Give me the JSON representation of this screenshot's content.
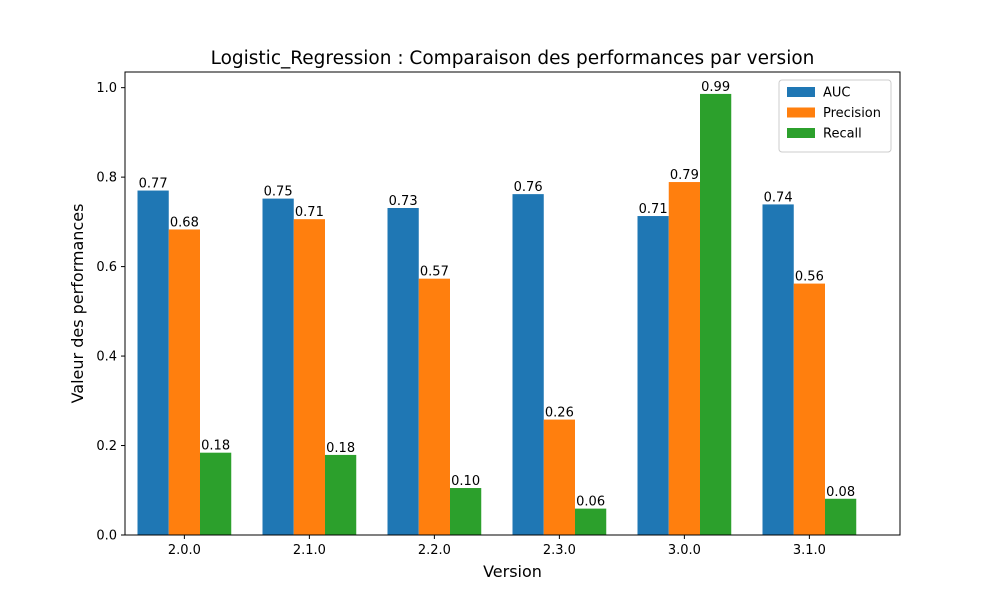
{
  "chart_data": {
    "type": "bar",
    "title": "Logistic_Regression : Comparaison des performances par version",
    "xlabel": "Version",
    "ylabel": "Valeur des performances",
    "categories": [
      "2.0.0",
      "2.1.0",
      "2.2.0",
      "2.3.0",
      "3.0.0",
      "3.1.0"
    ],
    "series": [
      {
        "name": "AUC",
        "color": "#1f77b4",
        "values": [
          0.77,
          0.752,
          0.731,
          0.762,
          0.713,
          0.739
        ],
        "labels": [
          "0.77",
          "0.75",
          "0.73",
          "0.76",
          "0.71",
          "0.74"
        ]
      },
      {
        "name": "Precision",
        "color": "#ff7f0e",
        "values": [
          0.683,
          0.706,
          0.573,
          0.258,
          0.789,
          0.562
        ],
        "labels": [
          "0.68",
          "0.71",
          "0.57",
          "0.26",
          "0.79",
          "0.56"
        ]
      },
      {
        "name": "Recall",
        "color": "#2ca02c",
        "values": [
          0.184,
          0.179,
          0.105,
          0.059,
          0.986,
          0.081
        ],
        "labels": [
          "0.18",
          "0.18",
          "0.10",
          "0.06",
          "0.99",
          "0.08"
        ]
      }
    ],
    "ylim": [
      0,
      1.035
    ],
    "yticks": [
      0.0,
      0.2,
      0.4,
      0.6,
      0.8,
      1.0
    ],
    "ytick_labels": [
      "0.0",
      "0.2",
      "0.4",
      "0.6",
      "0.8",
      "1.0"
    ],
    "grid": false,
    "legend_position": "top-right"
  }
}
